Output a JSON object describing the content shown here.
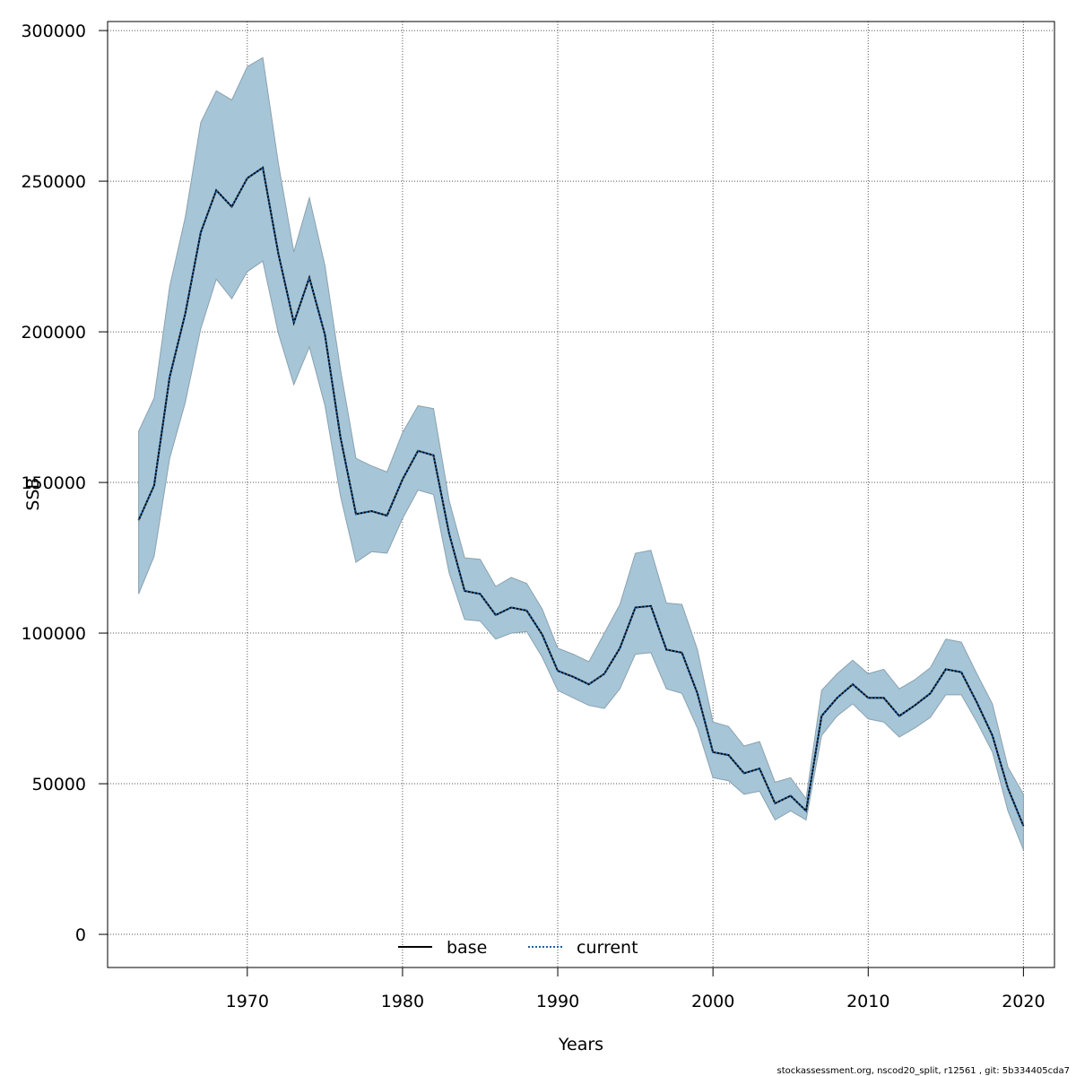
{
  "chart_data": {
    "type": "line",
    "xlabel": "Years",
    "ylabel": "SSB",
    "xlim": [
      1961,
      2022
    ],
    "ylim": [
      -11000,
      303000
    ],
    "x_ticks": [
      1970,
      1980,
      1990,
      2000,
      2010,
      2020
    ],
    "y_ticks": [
      0,
      50000,
      100000,
      150000,
      200000,
      250000,
      300000
    ],
    "grid": true,
    "legend_position": "bottom-center",
    "x": [
      1963,
      1964,
      1965,
      1966,
      1967,
      1968,
      1969,
      1970,
      1971,
      1972,
      1973,
      1974,
      1975,
      1976,
      1977,
      1978,
      1979,
      1980,
      1981,
      1982,
      1983,
      1984,
      1985,
      1986,
      1987,
      1988,
      1989,
      1990,
      1991,
      1992,
      1993,
      1994,
      1995,
      1996,
      1997,
      1998,
      1999,
      2000,
      2001,
      2002,
      2003,
      2004,
      2005,
      2006,
      2007,
      2008,
      2009,
      2010,
      2011,
      2012,
      2013,
      2014,
      2015,
      2016,
      2017,
      2018,
      2019,
      2020
    ],
    "series": [
      {
        "name": "base",
        "style": "solid",
        "color": "#000000",
        "values": [
          137500,
          149000,
          185000,
          206000,
          233000,
          247000,
          241500,
          251000,
          254500,
          226000,
          203000,
          218000,
          199000,
          165000,
          139500,
          140500,
          139000,
          151000,
          160500,
          159000,
          133000,
          114000,
          113000,
          106000,
          108500,
          107500,
          99500,
          87500,
          85500,
          83000,
          86500,
          95000,
          108500,
          109000,
          94500,
          93500,
          80000,
          60500,
          59500,
          53500,
          55000,
          43500,
          46000,
          41000,
          72500,
          78500,
          83000,
          78500,
          78500,
          72500,
          76000,
          80000,
          88000,
          87000,
          77000,
          66000,
          48500,
          36000
        ]
      },
      {
        "name": "current",
        "style": "dotted",
        "color": "#1f5f9f",
        "values": [
          137500,
          149000,
          185000,
          206000,
          233000,
          247000,
          241500,
          251000,
          254500,
          226000,
          203000,
          218000,
          199000,
          165000,
          139500,
          140500,
          139000,
          151000,
          160500,
          159000,
          133000,
          114000,
          113000,
          106000,
          108500,
          107500,
          99500,
          87500,
          85500,
          83000,
          86500,
          95000,
          108500,
          109000,
          94500,
          93500,
          80000,
          60500,
          59500,
          53500,
          55000,
          43500,
          46000,
          41000,
          72500,
          78500,
          83000,
          78500,
          78500,
          72500,
          76000,
          80000,
          88000,
          87000,
          77000,
          66000,
          48500,
          36000
        ]
      }
    ],
    "confidence_band": {
      "color": "#a6c5d6",
      "lower": [
        113000,
        125500,
        158000,
        176500,
        201000,
        217500,
        211000,
        220000,
        223500,
        199500,
        182500,
        195000,
        175500,
        145500,
        123500,
        127000,
        126500,
        138000,
        147500,
        146000,
        120000,
        104500,
        104000,
        98000,
        100000,
        100500,
        92000,
        81000,
        78500,
        76000,
        75000,
        81500,
        93000,
        93500,
        81500,
        80000,
        68500,
        52000,
        51000,
        46500,
        47500,
        38000,
        41000,
        38000,
        66000,
        72500,
        76500,
        71500,
        70500,
        65500,
        68500,
        72000,
        79500,
        79500,
        70500,
        60500,
        41000,
        28000
      ],
      "upper": [
        167000,
        178000,
        215000,
        238000,
        269500,
        280000,
        277000,
        288000,
        291000,
        256000,
        226500,
        244500,
        222000,
        187500,
        158000,
        155500,
        153500,
        166500,
        175500,
        174500,
        144000,
        125000,
        124500,
        115500,
        118500,
        116500,
        108000,
        95000,
        93000,
        90500,
        100000,
        109500,
        126500,
        127500,
        110000,
        109500,
        94500,
        70500,
        69000,
        62500,
        64000,
        50500,
        52000,
        45000,
        81000,
        86500,
        91000,
        86500,
        88000,
        81500,
        84500,
        88500,
        98000,
        97000,
        86500,
        76500,
        55500,
        46500
      ]
    },
    "credit": "stockassessment.org, nscod20_split, r12561 , git: 5b334405cda7"
  }
}
